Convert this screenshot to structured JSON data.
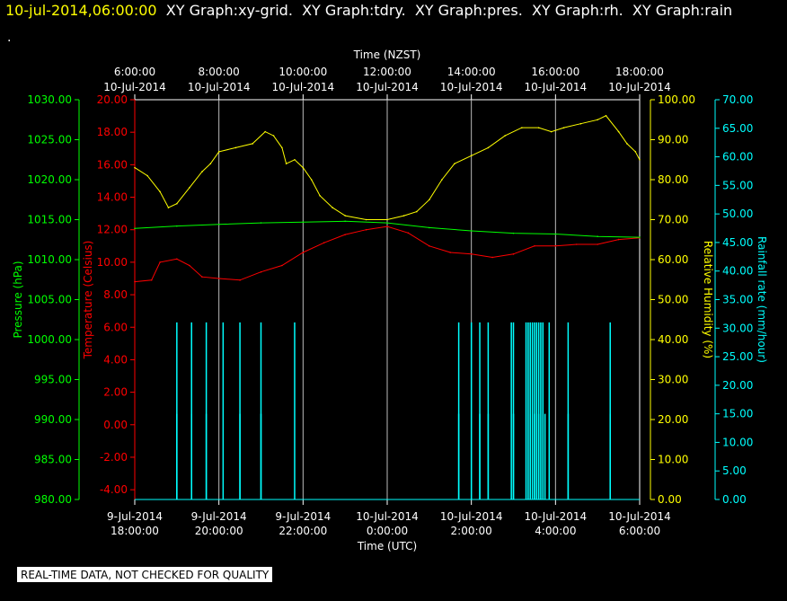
{
  "header": {
    "timestamp": "10-jul-2014,06:00:00",
    "graphs": "XY Graph:xy-grid.  XY Graph:tdry.  XY Graph:pres.  XY Graph:rh.  XY Graph:rain",
    "dot": "."
  },
  "footer": {
    "quality_note": "REAL-TIME DATA, NOT CHECKED FOR QUALITY"
  },
  "chart_data": {
    "type": "line",
    "top_axis": {
      "label": "Time (NZST)",
      "ticks": [
        {
          "time": "6:00:00",
          "date": "10-Jul-2014"
        },
        {
          "time": "8:00:00",
          "date": "10-Jul-2014"
        },
        {
          "time": "10:00:00",
          "date": "10-Jul-2014"
        },
        {
          "time": "12:00:00",
          "date": "10-Jul-2014"
        },
        {
          "time": "14:00:00",
          "date": "10-Jul-2014"
        },
        {
          "time": "16:00:00",
          "date": "10-Jul-2014"
        },
        {
          "time": "18:00:00",
          "date": "10-Jul-2014"
        }
      ]
    },
    "bottom_axis": {
      "label": "Time (UTC)",
      "ticks": [
        {
          "date": "9-Jul-2014",
          "time": "18:00:00"
        },
        {
          "date": "9-Jul-2014",
          "time": "20:00:00"
        },
        {
          "date": "9-Jul-2014",
          "time": "22:00:00"
        },
        {
          "date": "10-Jul-2014",
          "time": "0:00:00"
        },
        {
          "date": "10-Jul-2014",
          "time": "2:00:00"
        },
        {
          "date": "10-Jul-2014",
          "time": "4:00:00"
        },
        {
          "date": "10-Jul-2014",
          "time": "6:00:00"
        }
      ]
    },
    "x_range_hours_utc": [
      "9-Jul-2014 18:00",
      "10-Jul-2014 06:00"
    ],
    "grid": "vertical",
    "axes": {
      "pressure": {
        "label": "Pressure (hPa)",
        "color": "#00ff00",
        "ticks": [
          "1030.00",
          "1025.00",
          "1020.00",
          "1015.00",
          "1010.00",
          "1005.00",
          "1000.00",
          "995.00",
          "990.00",
          "985.00",
          "980.00"
        ],
        "range": [
          980,
          1030
        ]
      },
      "temperature": {
        "label": "Temperature (Celsius)",
        "color": "#ff0000",
        "ticks": [
          "20.00",
          "18.00",
          "16.00",
          "14.00",
          "12.00",
          "10.00",
          "8.00",
          "6.00",
          "4.00",
          "2.00",
          "0.00",
          "-2.00",
          "-4.00"
        ],
        "range": [
          -4.6,
          20
        ]
      },
      "humidity": {
        "label": "Relative Humidity (%)",
        "color": "#ffff00",
        "ticks": [
          "100.00",
          "90.00",
          "80.00",
          "70.00",
          "60.00",
          "50.00",
          "40.00",
          "30.00",
          "20.00",
          "10.00",
          "0.00"
        ],
        "range": [
          0,
          100
        ]
      },
      "rain": {
        "label": "Rainfall rate (mm/hour)",
        "color": "#00ffff",
        "ticks": [
          "70.00",
          "65.00",
          "60.00",
          "55.00",
          "50.00",
          "45.00",
          "40.00",
          "35.00",
          "30.00",
          "25.00",
          "20.00",
          "15.00",
          "10.00",
          "5.00",
          "0.00"
        ],
        "range": [
          0,
          70
        ]
      }
    },
    "series": [
      {
        "name": "Relative Humidity",
        "axis": "humidity",
        "color": "#ffff00",
        "points": [
          [
            0,
            83
          ],
          [
            0.3,
            81
          ],
          [
            0.6,
            77
          ],
          [
            0.8,
            73
          ],
          [
            1.0,
            74
          ],
          [
            1.3,
            78
          ],
          [
            1.6,
            82
          ],
          [
            1.8,
            84
          ],
          [
            2.0,
            87
          ],
          [
            2.4,
            88
          ],
          [
            2.8,
            89
          ],
          [
            3.1,
            92
          ],
          [
            3.3,
            91
          ],
          [
            3.5,
            88
          ],
          [
            3.6,
            84
          ],
          [
            3.8,
            85
          ],
          [
            4.0,
            83
          ],
          [
            4.2,
            80
          ],
          [
            4.4,
            76
          ],
          [
            4.7,
            73
          ],
          [
            5.0,
            71
          ],
          [
            5.5,
            70
          ],
          [
            6.0,
            70
          ],
          [
            6.4,
            71
          ],
          [
            6.7,
            72
          ],
          [
            7.0,
            75
          ],
          [
            7.3,
            80
          ],
          [
            7.6,
            84
          ],
          [
            8.0,
            86
          ],
          [
            8.4,
            88
          ],
          [
            8.8,
            91
          ],
          [
            9.2,
            93
          ],
          [
            9.6,
            93
          ],
          [
            9.9,
            92
          ],
          [
            10.2,
            93
          ],
          [
            10.6,
            94
          ],
          [
            11.0,
            95
          ],
          [
            11.2,
            96
          ],
          [
            11.5,
            92
          ],
          [
            11.7,
            89
          ],
          [
            11.9,
            87
          ],
          [
            12.0,
            85
          ]
        ]
      },
      {
        "name": "Temperature",
        "axis": "temperature",
        "color": "#ff0000",
        "points": [
          [
            0,
            8.8
          ],
          [
            0.4,
            8.9
          ],
          [
            0.6,
            10
          ],
          [
            1.0,
            10.2
          ],
          [
            1.3,
            9.8
          ],
          [
            1.6,
            9.1
          ],
          [
            2.0,
            9.0
          ],
          [
            2.5,
            8.9
          ],
          [
            3.0,
            9.4
          ],
          [
            3.5,
            9.8
          ],
          [
            4.0,
            10.6
          ],
          [
            4.5,
            11.2
          ],
          [
            5.0,
            11.7
          ],
          [
            5.5,
            12.0
          ],
          [
            6.0,
            12.2
          ],
          [
            6.5,
            11.8
          ],
          [
            7.0,
            11.0
          ],
          [
            7.5,
            10.6
          ],
          [
            8.0,
            10.5
          ],
          [
            8.5,
            10.3
          ],
          [
            9.0,
            10.5
          ],
          [
            9.5,
            11.0
          ],
          [
            10.0,
            11.0
          ],
          [
            10.5,
            11.1
          ],
          [
            11.0,
            11.1
          ],
          [
            11.5,
            11.4
          ],
          [
            12.0,
            11.5
          ]
        ]
      },
      {
        "name": "Pressure",
        "axis": "pressure",
        "color": "#00ff00",
        "points": [
          [
            0,
            1013.9
          ],
          [
            1,
            1014.2
          ],
          [
            2,
            1014.4
          ],
          [
            3,
            1014.6
          ],
          [
            4,
            1014.7
          ],
          [
            5,
            1014.8
          ],
          [
            6,
            1014.6
          ],
          [
            7,
            1014.0
          ],
          [
            8,
            1013.6
          ],
          [
            9,
            1013.3
          ],
          [
            10,
            1013.2
          ],
          [
            11,
            1012.9
          ],
          [
            12,
            1012.8
          ]
        ]
      },
      {
        "name": "Rainfall rate",
        "axis": "rain",
        "color": "#00ffff",
        "spikes": [
          [
            1.0,
            31
          ],
          [
            1.0,
            15
          ],
          [
            1.35,
            31
          ],
          [
            1.35,
            15
          ],
          [
            1.7,
            31
          ],
          [
            1.7,
            15
          ],
          [
            2.1,
            31
          ],
          [
            2.5,
            31
          ],
          [
            2.5,
            15
          ],
          [
            3.0,
            31
          ],
          [
            3.0,
            15
          ],
          [
            3.8,
            31
          ],
          [
            7.7,
            31
          ],
          [
            7.7,
            15
          ],
          [
            8.0,
            31
          ],
          [
            8.2,
            31
          ],
          [
            8.2,
            15
          ],
          [
            8.4,
            31
          ],
          [
            8.4,
            15
          ],
          [
            8.95,
            31
          ],
          [
            9.0,
            31
          ],
          [
            9.0,
            15
          ],
          [
            9.3,
            31
          ],
          [
            9.35,
            31
          ],
          [
            9.4,
            31
          ],
          [
            9.45,
            31
          ],
          [
            9.5,
            31
          ],
          [
            9.55,
            31
          ],
          [
            9.6,
            31
          ],
          [
            9.65,
            31
          ],
          [
            9.7,
            31
          ],
          [
            9.4,
            15
          ],
          [
            9.5,
            15
          ],
          [
            9.6,
            15
          ],
          [
            9.75,
            15
          ],
          [
            9.85,
            31
          ],
          [
            10.3,
            31
          ],
          [
            10.3,
            15
          ],
          [
            11.3,
            31
          ],
          [
            11.3,
            15
          ]
        ]
      }
    ]
  }
}
